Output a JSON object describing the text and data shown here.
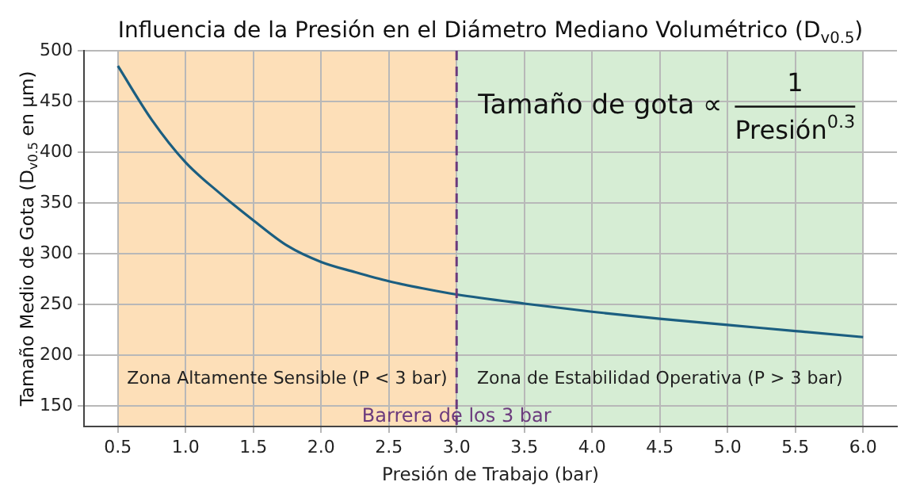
{
  "chart_data": {
    "type": "line",
    "title": "Influencia de la Presión en el Diámetro Mediano Volumétrico (D$_{v0.5}$)",
    "xlabel": "Presión de Trabajo (bar)",
    "ylabel": "Tamaño Medio de Gota (D$_{v0.5}$ en μm)",
    "x": [
      0.5,
      0.75,
      1.0,
      1.25,
      1.5,
      1.75,
      2.0,
      2.25,
      2.5,
      2.75,
      3.0,
      3.5,
      4.0,
      4.5,
      5.0,
      5.5,
      6.0
    ],
    "series": [
      {
        "color": "#1b5e80",
        "values": [
          485,
          432,
          390,
          360,
          333,
          308,
          292,
          282,
          273,
          266,
          260,
          251,
          243,
          236,
          230,
          224,
          218
        ]
      }
    ],
    "xlim": [
      0.25,
      6.25
    ],
    "xticks": [
      0.5,
      {
        "value": 1,
        "label": "1.0"
      },
      1.5,
      {
        "value": 2,
        "label": "2.0"
      },
      2.5,
      {
        "value": 3,
        "label": "3.0"
      },
      3.5,
      {
        "value": 4,
        "label": "4.0"
      },
      4.5,
      {
        "value": 5,
        "label": "5.0"
      },
      5.5,
      {
        "value": 6,
        "label": "6.0"
      }
    ],
    "ylim": [
      130,
      500
    ],
    "yticks": [
      150,
      200,
      250,
      300,
      350,
      400,
      450,
      500
    ],
    "grid": true,
    "marker": "none",
    "line_style": "solid",
    "bands": [
      {
        "axis": "x",
        "from": 0.5,
        "to": 3,
        "label": "Zona Altamente Sensible (P < 3 bar)",
        "color": "#fddfb8"
      },
      {
        "axis": "x",
        "from": 3,
        "to": 6,
        "label": "Zona de Estabilidad Operativa (P > 3 bar)",
        "color": "#d6edd4"
      }
    ],
    "ref_lines": [
      {
        "axis": "x",
        "value": 3,
        "label": "Barrera de los 3 bar",
        "color": "#6b3a7d",
        "line_style": "dashed"
      }
    ],
    "annotations": [
      "Tamaño de gota ∝",
      "1",
      "Presión$^{0.3}$"
    ]
  }
}
